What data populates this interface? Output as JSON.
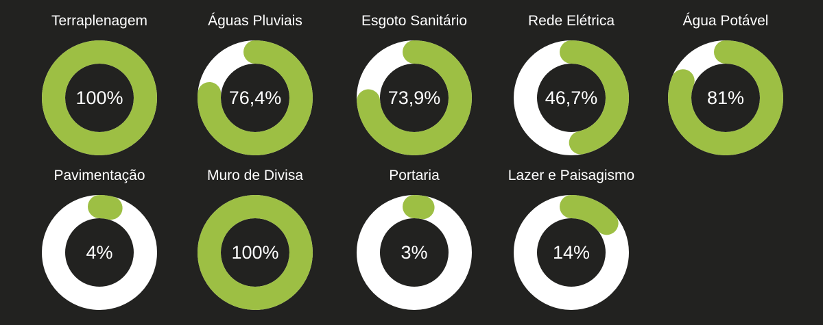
{
  "colors": {
    "background": "#222220",
    "progress": "#9dbf44",
    "track": "#ffffff",
    "text": "#ffffff"
  },
  "chart_data": {
    "type": "donut",
    "items": [
      {
        "title": "Terraplenagem",
        "value": 100,
        "label": "100%"
      },
      {
        "title": "Águas Pluviais",
        "value": 76.4,
        "label": "76,4%"
      },
      {
        "title": "Esgoto Sanitário",
        "value": 73.9,
        "label": "73,9%"
      },
      {
        "title": "Rede Elétrica",
        "value": 46.7,
        "label": "46,7%"
      },
      {
        "title": "Água Potável",
        "value": 81,
        "label": "81%"
      },
      {
        "title": "Pavimentação",
        "value": 4,
        "label": "4%"
      },
      {
        "title": "Muro de Divisa",
        "value": 100,
        "label": "100%"
      },
      {
        "title": "Portaria",
        "value": 3,
        "label": "3%"
      },
      {
        "title": "Lazer e Paisagismo",
        "value": 14,
        "label": "14%"
      }
    ]
  }
}
